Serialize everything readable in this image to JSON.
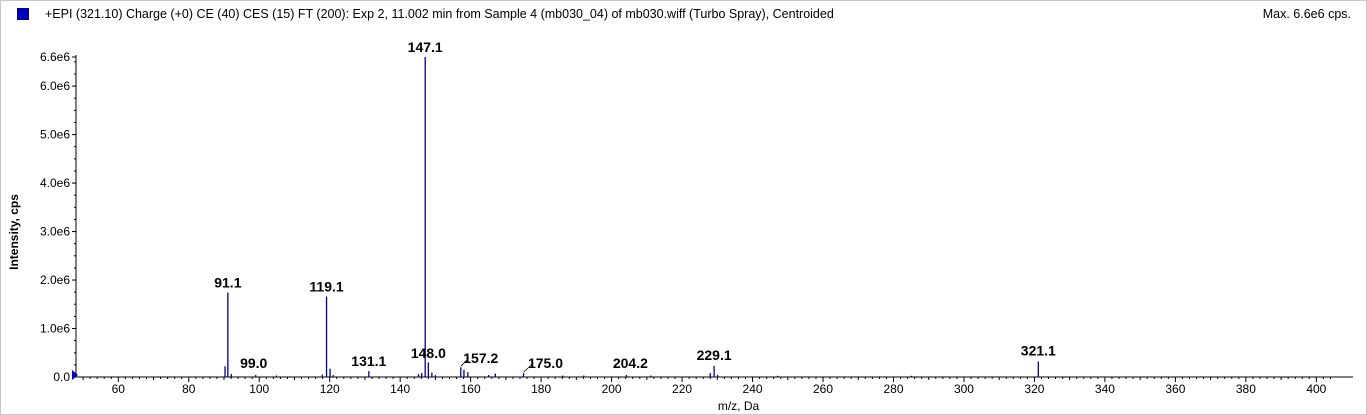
{
  "header": {
    "title": "+EPI (321.10) Charge (+0) CE (40) CES (15) FT (200): Exp 2, 11.002 min from Sample 4 (mb030_04) of mb030.wiff (Turbo Spray), Centroided",
    "max_label": "Max. 6.6e6 cps."
  },
  "colors": {
    "trace": "#00008b",
    "marker": "#0000c0",
    "axis": "#000000"
  },
  "chart_data": {
    "type": "bar",
    "xlabel": "m/z, Da",
    "ylabel": "Intensity, cps",
    "xlim": [
      48,
      407
    ],
    "ylim": [
      0,
      6600000.0
    ],
    "x_ticks": [
      60,
      80,
      100,
      120,
      140,
      160,
      180,
      200,
      220,
      240,
      260,
      280,
      300,
      320,
      340,
      360,
      380,
      400
    ],
    "y_ticks": [
      {
        "value": 0,
        "label": "0.0"
      },
      {
        "value": 1000000,
        "label": "1.0e6"
      },
      {
        "value": 2000000,
        "label": "2.0e6"
      },
      {
        "value": 3000000,
        "label": "3.0e6"
      },
      {
        "value": 4000000,
        "label": "4.0e6"
      },
      {
        "value": 5000000,
        "label": "5.0e6"
      },
      {
        "value": 6000000,
        "label": "6.0e6"
      },
      {
        "value": 6600000,
        "label": "6.6e6"
      }
    ],
    "peaks": [
      {
        "mz": 90.3,
        "intensity": 220000
      },
      {
        "mz": 91.1,
        "intensity": 1740000,
        "label": "91.1"
      },
      {
        "mz": 92.1,
        "intensity": 60000
      },
      {
        "mz": 99.0,
        "intensity": 40000,
        "label": "99.0"
      },
      {
        "mz": 104.9,
        "intensity": 30000
      },
      {
        "mz": 117.9,
        "intensity": 50000
      },
      {
        "mz": 119.1,
        "intensity": 1660000,
        "label": "119.1"
      },
      {
        "mz": 120.1,
        "intensity": 170000
      },
      {
        "mz": 121.0,
        "intensity": 40000
      },
      {
        "mz": 131.1,
        "intensity": 120000,
        "label": "131.1"
      },
      {
        "mz": 145.2,
        "intensity": 60000
      },
      {
        "mz": 146.1,
        "intensity": 80000
      },
      {
        "mz": 147.1,
        "intensity": 6600000,
        "label": "147.1"
      },
      {
        "mz": 148.0,
        "intensity": 300000,
        "label": "148.0"
      },
      {
        "mz": 149.0,
        "intensity": 90000
      },
      {
        "mz": 150.0,
        "intensity": 40000
      },
      {
        "mz": 157.2,
        "intensity": 200000,
        "label": "157.2"
      },
      {
        "mz": 158.1,
        "intensity": 150000
      },
      {
        "mz": 159.2,
        "intensity": 100000
      },
      {
        "mz": 165.1,
        "intensity": 40000
      },
      {
        "mz": 167.0,
        "intensity": 70000
      },
      {
        "mz": 175.0,
        "intensity": 80000,
        "label": "175.0"
      },
      {
        "mz": 186.1,
        "intensity": 30000
      },
      {
        "mz": 192.1,
        "intensity": 30000
      },
      {
        "mz": 204.2,
        "intensity": 40000,
        "label": "204.2"
      },
      {
        "mz": 211.1,
        "intensity": 30000
      },
      {
        "mz": 228.0,
        "intensity": 80000
      },
      {
        "mz": 229.1,
        "intensity": 230000,
        "label": "229.1"
      },
      {
        "mz": 230.1,
        "intensity": 40000
      },
      {
        "mz": 247.1,
        "intensity": 25000
      },
      {
        "mz": 285.1,
        "intensity": 25000
      },
      {
        "mz": 321.1,
        "intensity": 320000,
        "label": "321.1"
      }
    ]
  }
}
